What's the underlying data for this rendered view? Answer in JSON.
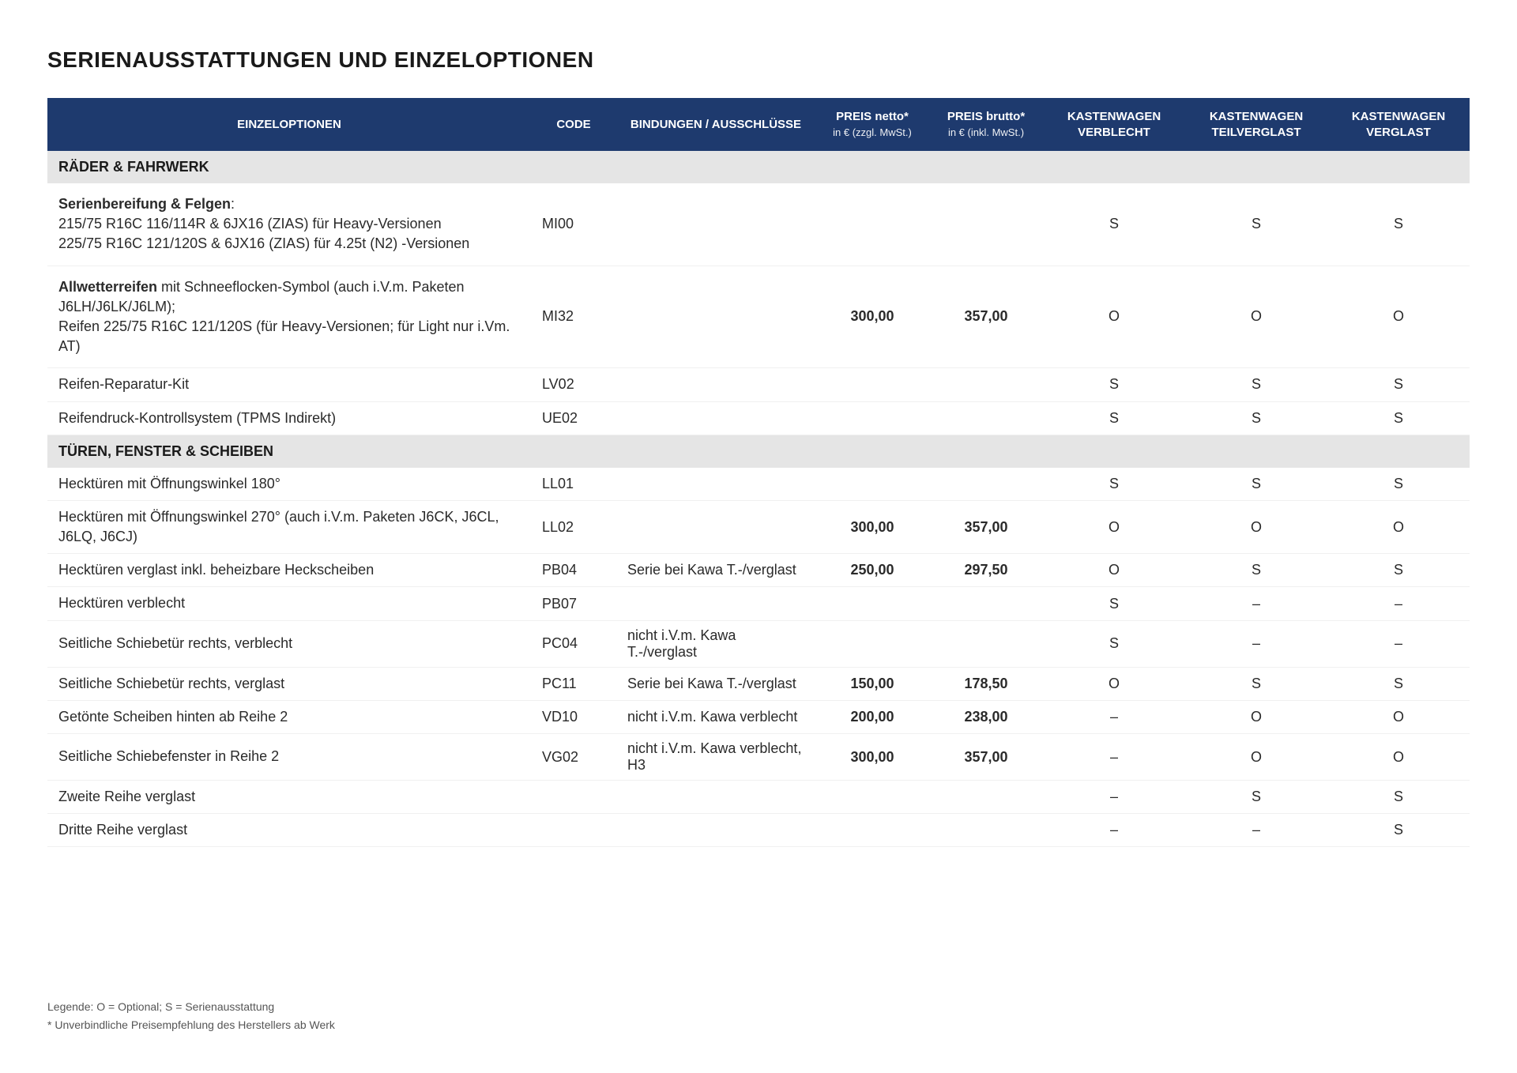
{
  "title": "SERIENAUSSTATTUNGEN UND EINZELOPTIONEN",
  "header": {
    "desc": "EINZELOPTIONEN",
    "code": "CODE",
    "bind": "BINDUNGEN / AUSSCHLÜSSE",
    "netto": "PREIS netto*",
    "netto_sub": "in € (zzgl. MwSt.)",
    "brutto": "PREIS brutto*",
    "brutto_sub": "in € (inkl. MwSt.)",
    "var1": "KASTENWAGEN VERBLECHT",
    "var2": "KASTENWAGEN TEILVERGLAST",
    "var3": "KASTENWAGEN VERGLAST"
  },
  "sections": [
    {
      "title": "RÄDER & FAHRWERK"
    },
    {
      "title": "TÜREN, FENSTER & SCHEIBEN"
    }
  ],
  "rows": {
    "r1": {
      "desc_bold": "Serienbereifung & Felgen",
      "desc_rest": ":\n215/75 R16C 116/114R & 6JX16 (ZIAS) für Heavy-Versionen\n225/75 R16C 121/120S & 6JX16 (ZIAS) für 4.25t (N2) -Versionen",
      "code": "MI00",
      "bind": "",
      "netto": "",
      "brutto": "",
      "v1": "S",
      "v2": "S",
      "v3": "S"
    },
    "r2": {
      "desc_bold": "Allwetterreifen",
      "desc_rest": " mit Schneeflocken-Symbol (auch i.V.m. Paketen  J6LH/J6LK/J6LM);\nReifen 225/75 R16C 121/120S  (für Heavy-Versionen; für Light nur i.Vm. AT)",
      "code": "MI32",
      "bind": "",
      "netto": "300,00",
      "brutto": "357,00",
      "v1": "O",
      "v2": "O",
      "v3": "O"
    },
    "r3": {
      "desc": "Reifen-Reparatur-Kit",
      "code": "LV02",
      "bind": "",
      "netto": "",
      "brutto": "",
      "v1": "S",
      "v2": "S",
      "v3": "S"
    },
    "r4": {
      "desc": "Reifendruck-Kontrollsystem (TPMS Indirekt)",
      "code": "UE02",
      "bind": "",
      "netto": "",
      "brutto": "",
      "v1": "S",
      "v2": "S",
      "v3": "S"
    },
    "r5": {
      "desc": "Hecktüren mit Öffnungswinkel 180°",
      "code": "LL01",
      "bind": "",
      "netto": "",
      "brutto": "",
      "v1": "S",
      "v2": "S",
      "v3": "S"
    },
    "r6": {
      "desc": "Hecktüren mit Öffnungswinkel 270°  (auch i.V.m. Paketen  J6CK, J6CL, J6LQ, J6CJ)",
      "code": "LL02",
      "bind": "",
      "netto": "300,00",
      "brutto": "357,00",
      "v1": "O",
      "v2": "O",
      "v3": "O"
    },
    "r7": {
      "desc": "Hecktüren verglast inkl. beheizbare Heckscheiben",
      "code": "PB04",
      "bind": "Serie bei Kawa T.-/verglast",
      "netto": "250,00",
      "brutto": "297,50",
      "v1": "O",
      "v2": "S",
      "v3": "S"
    },
    "r8": {
      "desc": "Hecktüren verblecht",
      "code": "PB07",
      "bind": "",
      "netto": "",
      "brutto": "",
      "v1": "S",
      "v2": "–",
      "v3": "–"
    },
    "r9": {
      "desc": "Seitliche Schiebetür rechts, verblecht",
      "code": "PC04",
      "bind": "nicht i.V.m. Kawa T.-/verglast",
      "netto": "",
      "brutto": "",
      "v1": "S",
      "v2": "–",
      "v3": "–"
    },
    "r10": {
      "desc": "Seitliche Schiebetür rechts, verglast",
      "code": "PC11",
      "bind": "Serie bei Kawa T.-/verglast",
      "netto": "150,00",
      "brutto": "178,50",
      "v1": "O",
      "v2": "S",
      "v3": "S"
    },
    "r11": {
      "desc": "Getönte Scheiben hinten ab Reihe 2",
      "code": "VD10",
      "bind": "nicht i.V.m. Kawa verblecht",
      "netto": "200,00",
      "brutto": "238,00",
      "v1": "–",
      "v2": "O",
      "v3": "O"
    },
    "r12": {
      "desc": "Seitliche Schiebefenster in Reihe 2",
      "code": "VG02",
      "bind": "nicht i.V.m. Kawa verblecht, H3",
      "netto": "300,00",
      "brutto": "357,00",
      "v1": "–",
      "v2": "O",
      "v3": "O"
    },
    "r13": {
      "desc": "Zweite Reihe verglast",
      "code": "",
      "bind": "",
      "netto": "",
      "brutto": "",
      "v1": "–",
      "v2": "S",
      "v3": "S"
    },
    "r14": {
      "desc": "Dritte Reihe verglast",
      "code": "",
      "bind": "",
      "netto": "",
      "brutto": "",
      "v1": "–",
      "v2": "–",
      "v3": "S"
    }
  },
  "legend": {
    "line1": "Legende: O = Optional; S = Serienausstattung",
    "line2": "* Unverbindliche Preisempfehlung des Herstellers ab Werk"
  },
  "colors": {
    "header_bg": "#1e3a6e",
    "header_fg": "#ffffff",
    "section_bg": "#e5e5e5",
    "row_border": "#f0f0f0",
    "text": "#222222"
  }
}
